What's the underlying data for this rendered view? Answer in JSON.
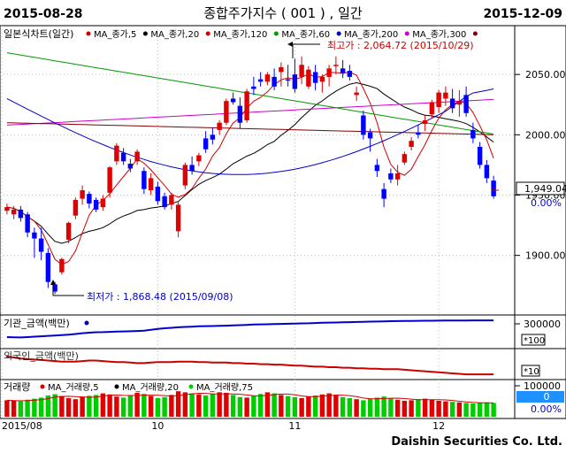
{
  "header": {
    "date_start": "2015-08-28",
    "title": "종합주가지수 ( 001 ) , 일간",
    "date_end": "2015-12-09"
  },
  "legend": {
    "main": "일본식차트(일간)",
    "items": [
      {
        "label": "MA_종가,5",
        "color": "#d00000"
      },
      {
        "label": "MA_종가,20",
        "color": "#000000"
      },
      {
        "label": "MA_종가,120",
        "color": "#d00000"
      },
      {
        "label": "MA_종가,60",
        "color": "#009900"
      },
      {
        "label": "MA_종가,200",
        "color": "#0000cc"
      },
      {
        "label": "MA_종가,300",
        "color": "#cc00cc"
      }
    ],
    "tail_marker_color": "#800000"
  },
  "annotations": {
    "high": "최고가 : 2,064.72 (2015/10/29)",
    "low": "최저가 : 1,868.48 (2015/09/08)"
  },
  "price_panel": {
    "last_value": "1,949.04",
    "last_change": "0.00%"
  },
  "inst_panel": {
    "title": "기관_금액(백만)",
    "axis_label": "300000",
    "unit": "*100"
  },
  "foreign_panel": {
    "title": "외국인_금액(백만)",
    "unit": "*10"
  },
  "volume_panel": {
    "title": "거래량",
    "legend": [
      {
        "label": "MA_거래량,5",
        "color": "#d00000"
      },
      {
        "label": "MA_거래량,20",
        "color": "#000000"
      },
      {
        "label": "MA_거래량,75",
        "color": "#00cc00"
      }
    ],
    "axis_label": "100000",
    "value": "0",
    "change": "0.00%"
  },
  "x_axis": {
    "labels": [
      "2015/08",
      "10",
      "11",
      "12"
    ]
  },
  "footer": {
    "brand": "Daishin Securities Co. Ltd."
  },
  "chart_data": {
    "type": "candlestick",
    "title": "종합주가지수 ( 001 ) , 일간",
    "y_ticks": [
      1900,
      1950,
      2000,
      2050
    ],
    "ylim": [
      1855,
      2078
    ],
    "x_tick_labels": [
      "2015/08",
      "10",
      "11",
      "12"
    ],
    "candles": [
      [
        1937,
        1943,
        1934,
        1940,
        1
      ],
      [
        1934,
        1941,
        1930,
        1938,
        1
      ],
      [
        1938,
        1941,
        1928,
        1931,
        -1
      ],
      [
        1934,
        1936,
        1915,
        1919,
        -1
      ],
      [
        1919,
        1923,
        1898,
        1914,
        -1
      ],
      [
        1914,
        1923,
        1896,
        1903,
        -1
      ],
      [
        1902,
        1906,
        1873,
        1878,
        -1
      ],
      [
        1876,
        1878,
        1868,
        1870,
        -1
      ],
      [
        1886,
        1898,
        1884,
        1897,
        1
      ],
      [
        1913,
        1928,
        1910,
        1927,
        1
      ],
      [
        1933,
        1948,
        1930,
        1946,
        1
      ],
      [
        1947,
        1958,
        1942,
        1954,
        1
      ],
      [
        1951,
        1953,
        1939,
        1943,
        -1
      ],
      [
        1946,
        1948,
        1936,
        1938,
        -1
      ],
      [
        1940,
        1950,
        1937,
        1947,
        1
      ],
      [
        1952,
        1974,
        1948,
        1973,
        1
      ],
      [
        1978,
        1993,
        1975,
        1991,
        1
      ],
      [
        1985,
        1989,
        1975,
        1978,
        -1
      ],
      [
        1976,
        1980,
        1969,
        1972,
        -1
      ],
      [
        1978,
        1988,
        1975,
        1986,
        1
      ],
      [
        1970,
        1973,
        1951,
        1955,
        -1
      ],
      [
        1954,
        1968,
        1950,
        1964,
        1
      ],
      [
        1957,
        1961,
        1942,
        1945,
        -1
      ],
      [
        1949,
        1952,
        1938,
        1940,
        -1
      ],
      [
        1942,
        1952,
        1938,
        1950,
        1
      ],
      [
        1920,
        1945,
        1915,
        1942,
        1
      ],
      [
        1958,
        1977,
        1955,
        1975,
        1
      ],
      [
        1975,
        1982,
        1967,
        1970,
        -1
      ],
      [
        1978,
        1985,
        1974,
        1983,
        1
      ],
      [
        1997,
        2003,
        1985,
        1988,
        -1
      ],
      [
        2000,
        2006,
        1992,
        1996,
        -1
      ],
      [
        2004,
        2012,
        2000,
        2010,
        1
      ],
      [
        2010,
        2030,
        2008,
        2028,
        1
      ],
      [
        2030,
        2035,
        2025,
        2027,
        -1
      ],
      [
        2024,
        2031,
        2005,
        2010,
        -1
      ],
      [
        2012,
        2038,
        2010,
        2036,
        1
      ],
      [
        2040,
        2048,
        2033,
        2038,
        -1
      ],
      [
        2046,
        2052,
        2040,
        2044,
        -1
      ],
      [
        2044,
        2052,
        2041,
        2050,
        1
      ],
      [
        2048,
        2055,
        2037,
        2040,
        -1
      ],
      [
        2052,
        2060,
        2040,
        2056,
        1
      ],
      [
        2045,
        2058,
        2040,
        2046,
        -1
      ],
      [
        2050,
        2063,
        2035,
        2038,
        -1
      ],
      [
        2048,
        2065,
        2042,
        2058,
        1
      ],
      [
        2040,
        2057,
        2038,
        2054,
        1
      ],
      [
        2052,
        2058,
        2037,
        2043,
        -1
      ],
      [
        2044,
        2050,
        2035,
        2048,
        1
      ],
      [
        2048,
        2058,
        2040,
        2055,
        1
      ],
      [
        2057,
        2065,
        2050,
        2058,
        1
      ],
      [
        2055,
        2062,
        2047,
        2051,
        -1
      ],
      [
        2053,
        2058,
        2045,
        2048,
        -1
      ],
      [
        2033,
        2040,
        2028,
        2035,
        1
      ],
      [
        2016,
        2020,
        1996,
        2000,
        -1
      ],
      [
        2002,
        2005,
        1986,
        1997,
        -1
      ],
      [
        1975,
        1980,
        1965,
        1970,
        -1
      ],
      [
        1955,
        1960,
        1940,
        1947,
        -1
      ],
      [
        1968,
        1972,
        1960,
        1963,
        -1
      ],
      [
        1963,
        1975,
        1958,
        1968,
        1
      ],
      [
        1977,
        1986,
        1975,
        1984,
        1
      ],
      [
        1990,
        1998,
        1987,
        1995,
        1
      ],
      [
        2002,
        2008,
        1997,
        2000,
        -1
      ],
      [
        2009,
        2016,
        2003,
        2012,
        1
      ],
      [
        2017,
        2029,
        2014,
        2027,
        1
      ],
      [
        2023,
        2037,
        2018,
        2035,
        1
      ],
      [
        2035,
        2040,
        2024,
        2030,
        1
      ],
      [
        2030,
        2038,
        2018,
        2022,
        -1
      ],
      [
        2028,
        2037,
        2015,
        2025,
        1
      ],
      [
        2033,
        2040,
        2015,
        2018,
        -1
      ],
      [
        2004,
        2010,
        1993,
        1997,
        -1
      ],
      [
        1990,
        1994,
        1972,
        1975,
        -1
      ],
      [
        1975,
        1979,
        1960,
        1964,
        -1
      ],
      [
        1962,
        1966,
        1947,
        1949,
        -1
      ]
    ],
    "inst_line": [
      110,
      108,
      106,
      110,
      115,
      120,
      125,
      130,
      135,
      140,
      148,
      158,
      165,
      170,
      172,
      175,
      178,
      180,
      183,
      186,
      190,
      200,
      212,
      220,
      226,
      232,
      236,
      240,
      244,
      246,
      248,
      250,
      252,
      255,
      258,
      262,
      266,
      268,
      270,
      272,
      274,
      276,
      278,
      280,
      282,
      285,
      288,
      290,
      292,
      294,
      296,
      298,
      300,
      302,
      304,
      306,
      308,
      309,
      310,
      311,
      312,
      313,
      314,
      315,
      316,
      316,
      317,
      317,
      318,
      318,
      318,
      318
    ],
    "foreign_line": [
      40,
      38,
      36,
      35,
      34,
      33,
      32,
      31,
      30,
      30,
      30,
      31,
      32,
      32,
      31,
      30,
      29,
      29,
      28,
      27,
      27,
      28,
      29,
      29,
      29,
      30,
      30,
      30,
      29,
      29,
      28,
      28,
      28,
      27,
      27,
      26,
      26,
      25,
      25,
      24,
      24,
      23,
      22,
      22,
      21,
      20,
      20,
      19,
      19,
      18,
      18,
      17,
      17,
      16,
      16,
      15,
      15,
      15,
      14,
      13,
      12,
      11,
      10,
      9,
      8,
      7,
      6,
      5,
      5,
      5,
      5,
      5
    ],
    "volume": [
      62,
      60,
      58,
      64,
      68,
      72,
      80,
      85,
      78,
      70,
      66,
      74,
      79,
      82,
      88,
      84,
      76,
      72,
      80,
      90,
      86,
      78,
      70,
      74,
      82,
      96,
      92,
      88,
      84,
      80,
      86,
      92,
      90,
      82,
      74,
      72,
      78,
      86,
      92,
      88,
      82,
      78,
      74,
      70,
      76,
      80,
      84,
      88,
      80,
      74,
      70,
      66,
      62,
      68,
      72,
      76,
      70,
      64,
      60,
      62,
      66,
      68,
      64,
      60,
      58,
      56,
      54,
      52,
      50,
      52,
      54,
      52
    ]
  }
}
